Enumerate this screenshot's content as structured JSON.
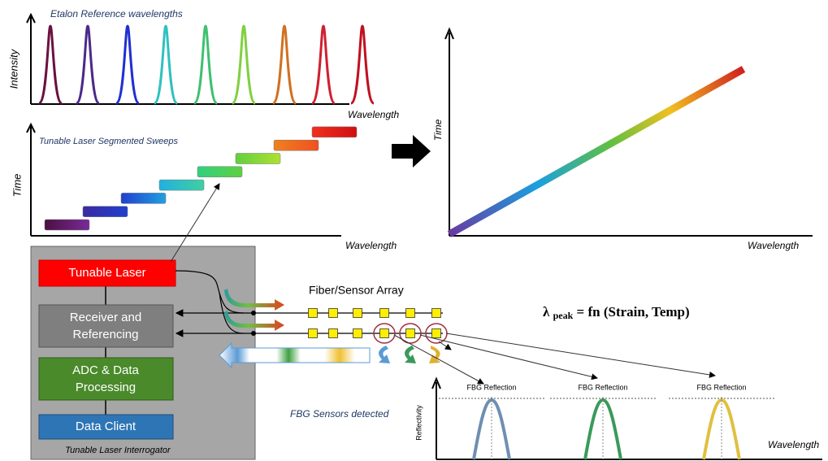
{
  "etalon_chart": {
    "title": "Etalon Reference wavelengths",
    "y_label": "Intensity",
    "x_label": "Wavelength"
  },
  "sweep_chart": {
    "title": "Tunable Laser Segmented Sweeps",
    "y_label": "Time",
    "x_label": "Wavelength"
  },
  "result_chart": {
    "y_label": "Time",
    "x_label": "Wavelength"
  },
  "interrogator": {
    "caption": "Tunable Laser Interrogator",
    "blocks": [
      "Tunable Laser",
      "Receiver and",
      "Referencing",
      "ADC & Data",
      "Processing",
      "Data Client"
    ]
  },
  "fiber": {
    "label": "Fiber/Sensor Array"
  },
  "formula": {
    "symbol": "λ",
    "subscript": "peak",
    "expression": "= fn (Strain, Temp)"
  },
  "detected": {
    "label": "FBG Sensors detected"
  },
  "reflection_chart": {
    "y_label": "Reflectivity",
    "x_label": "Wavelength",
    "peak_labels": [
      "FBG Reflection",
      "FBG Reflection",
      "FBG Reflection"
    ]
  }
}
